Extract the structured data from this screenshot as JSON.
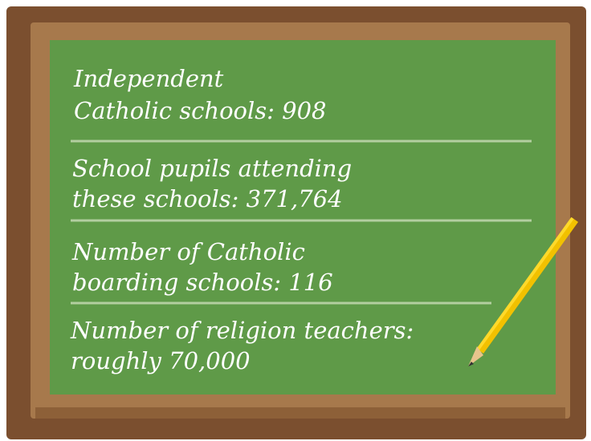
{
  "facts": [
    {
      "lines": [
        "Independent",
        "Catholic schools: 908"
      ]
    },
    {
      "lines": [
        "School pupils attending",
        "these schools: 371,764"
      ]
    },
    {
      "lines": [
        "Number of Catholic",
        "boarding schools: 116"
      ]
    },
    {
      "lines": [
        "Number of religion teachers:",
        "roughly 70,000"
      ]
    }
  ]
}
